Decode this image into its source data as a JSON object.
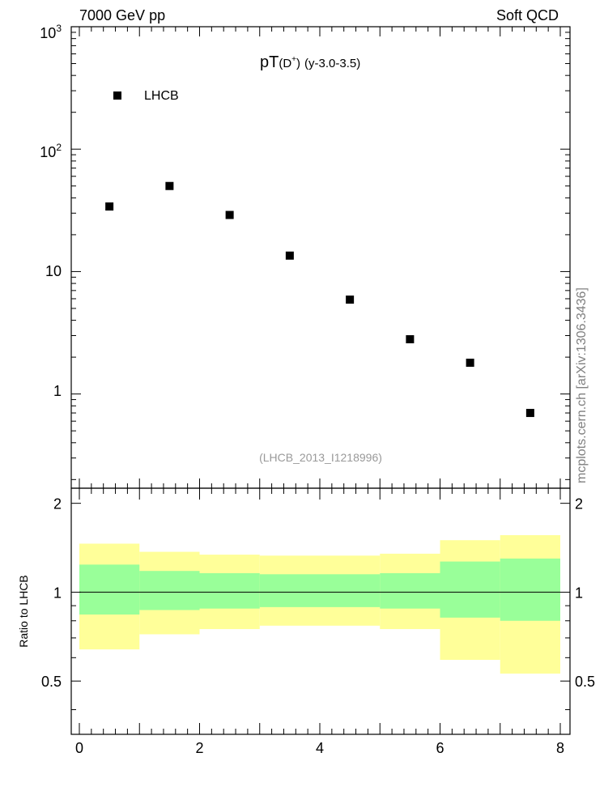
{
  "header": {
    "left": "7000 GeV pp",
    "right": "Soft QCD"
  },
  "side_label": "mcplots.cern.ch [arXiv:1306.3436]",
  "chart_data": [
    {
      "type": "scatter",
      "title_main": "pT",
      "title_particle": "(D",
      "title_sup": "+",
      "title_close": ")",
      "title_rest": "(y-3.0-3.5)",
      "yscale": "log",
      "ylim": [
        0.17,
        1000
      ],
      "xlim": [
        0,
        8
      ],
      "legend": {
        "label": "LHCB",
        "position": "top-left"
      },
      "watermark": "(LHCB_2013_I1218996)",
      "ytick_labels": [
        {
          "base": "10",
          "exp": "3",
          "value": 1000
        },
        {
          "base": "10",
          "exp": "2",
          "value": 100
        },
        {
          "base": "10",
          "exp": "",
          "value": 10
        },
        {
          "base": "1",
          "exp": "",
          "value": 1
        }
      ],
      "series": [
        {
          "name": "LHCB",
          "color": "#000000",
          "x": [
            0.5,
            1.5,
            2.5,
            3.5,
            4.5,
            5.5,
            6.5,
            7.5
          ],
          "y": [
            34,
            50,
            29,
            13.5,
            5.9,
            2.8,
            1.8,
            0.7
          ]
        }
      ]
    },
    {
      "type": "area",
      "ylabel": "Ratio to LHCB",
      "xlim": [
        0,
        8
      ],
      "ylim": [
        0.33,
        2.25
      ],
      "xtick_labels": [
        "0",
        "2",
        "4",
        "6",
        "8"
      ],
      "ytick_labels": [
        "2",
        "1",
        "0.5"
      ],
      "ytick_values": [
        2,
        1,
        0.5
      ],
      "reference_line": 1,
      "bins": [
        [
          0,
          1
        ],
        [
          1,
          2
        ],
        [
          2,
          3
        ],
        [
          3,
          4
        ],
        [
          4,
          5
        ],
        [
          5,
          6
        ],
        [
          6,
          7
        ],
        [
          7,
          8
        ]
      ],
      "band_outer": {
        "color": "#ffff99",
        "low": [
          0.64,
          0.72,
          0.75,
          0.77,
          0.77,
          0.75,
          0.59,
          0.53
        ],
        "high": [
          1.46,
          1.37,
          1.34,
          1.33,
          1.33,
          1.35,
          1.5,
          1.56
        ]
      },
      "band_inner": {
        "color": "#99ff99",
        "low": [
          0.84,
          0.87,
          0.88,
          0.89,
          0.89,
          0.88,
          0.82,
          0.8
        ],
        "high": [
          1.24,
          1.18,
          1.16,
          1.15,
          1.15,
          1.16,
          1.27,
          1.3
        ]
      }
    }
  ]
}
